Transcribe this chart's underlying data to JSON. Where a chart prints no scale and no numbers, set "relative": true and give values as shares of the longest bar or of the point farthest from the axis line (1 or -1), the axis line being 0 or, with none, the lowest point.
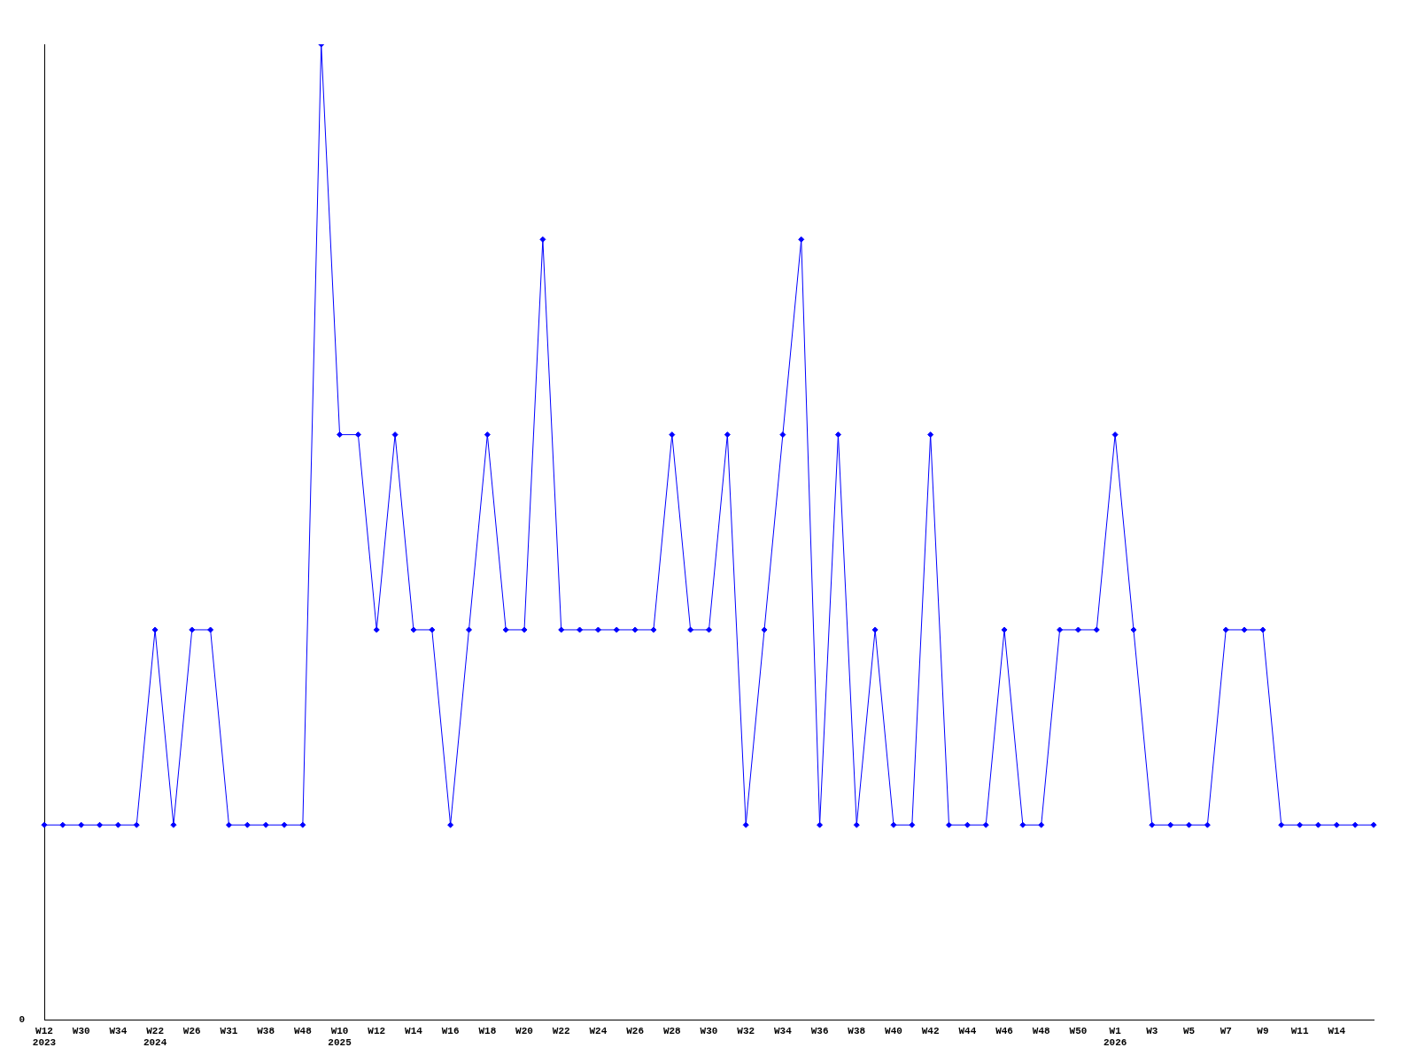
{
  "chart_data": {
    "type": "line",
    "relative": true,
    "categories": [
      "W12\n2023",
      null,
      "W30",
      null,
      "W34",
      null,
      "W22\n2024",
      null,
      "W26",
      null,
      "W31",
      null,
      "W38",
      null,
      "W48",
      null,
      "W10\n2025",
      null,
      "W12",
      null,
      "W14",
      null,
      "W16",
      null,
      "W18",
      null,
      "W20",
      null,
      "W22",
      null,
      "W24",
      null,
      "W26",
      null,
      "W28",
      null,
      "W30",
      null,
      "W32",
      null,
      "W34",
      null,
      "W36",
      null,
      "W38",
      null,
      "W40",
      null,
      "W42",
      null,
      "W44",
      null,
      "W46",
      null,
      "W48",
      null,
      "W50",
      null,
      "W1\n2026",
      null,
      "W3",
      null,
      "W5",
      null,
      "W7",
      null,
      "W9",
      null,
      "W11",
      null,
      "W14",
      null,
      null
    ],
    "series": [
      {
        "color": "#0000ff",
        "values": [
          0.2,
          0.2,
          0.2,
          0.2,
          0.2,
          0.2,
          0.4,
          0.2,
          0.4,
          0.4,
          0.2,
          0.2,
          0.2,
          0.2,
          0.2,
          1,
          0.6,
          0.6,
          0.4,
          0.6,
          0.4,
          0.4,
          0.2,
          0.4,
          0.6,
          0.4,
          0.4,
          0.8,
          0.4,
          0.4,
          0.4,
          0.4,
          0.4,
          0.4,
          0.6,
          0.4,
          0.4,
          0.6,
          0.2,
          0.4,
          0.6,
          0.8,
          0.2,
          0.6,
          0.2,
          0.4,
          0.2,
          0.2,
          0.6,
          0.2,
          0.2,
          0.2,
          0.4,
          0.2,
          0.2,
          0.4,
          0.4,
          0.4,
          0.6,
          0.4,
          0.2,
          0.2,
          0.2,
          0.2,
          0.4,
          0.4,
          0.4,
          0.2,
          0.2,
          0.2,
          0.2,
          0.2,
          0.2
        ]
      }
    ],
    "annotations": [
      "0"
    ],
    "marker": "diamond",
    "grid": false,
    "legend": false
  }
}
